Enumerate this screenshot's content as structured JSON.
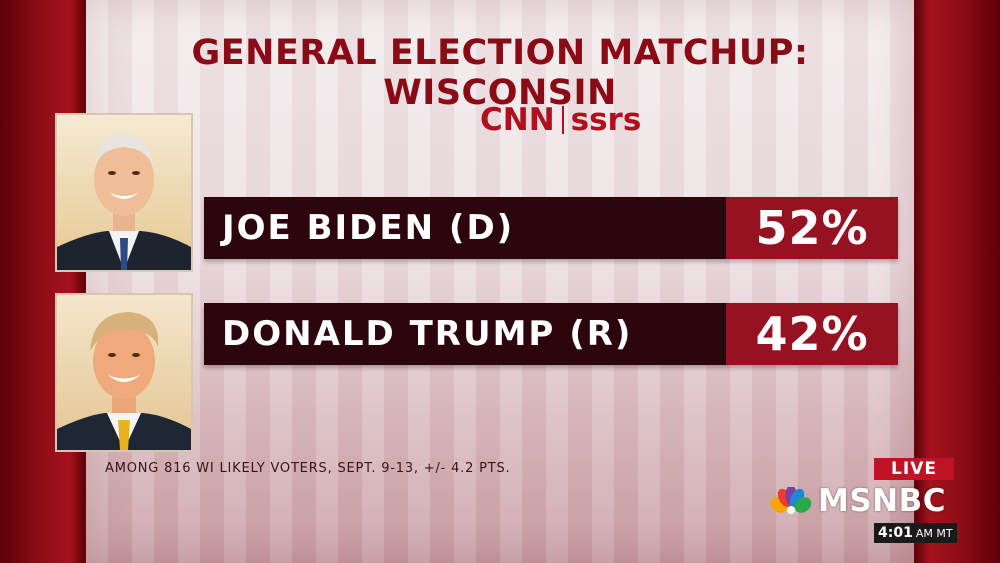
{
  "graphic": {
    "title": "GENERAL ELECTION MATCHUP: WISCONSIN",
    "sponsor": {
      "network": "CNN",
      "partner": "ssrs"
    },
    "candidates": [
      {
        "name": "JOE BIDEN (D)",
        "value": "52%",
        "portrait": "biden-portrait"
      },
      {
        "name": "DONALD TRUMP (R)",
        "value": "42%",
        "portrait": "trump-portrait"
      }
    ],
    "footnote": "AMONG 816 WI LIKELY VOTERS, SEPT. 9-13, +/- 4.2 PTS."
  },
  "broadcast": {
    "live_label": "LIVE",
    "network": "MSNBC",
    "logo_icon": "peacock-icon",
    "time": "4:01",
    "time_suffix": "AM MT"
  },
  "colors": {
    "title": "#8a0a16",
    "bar_dark": "#2c050d",
    "bar_value": "#971220",
    "live_badge": "#c01426"
  }
}
